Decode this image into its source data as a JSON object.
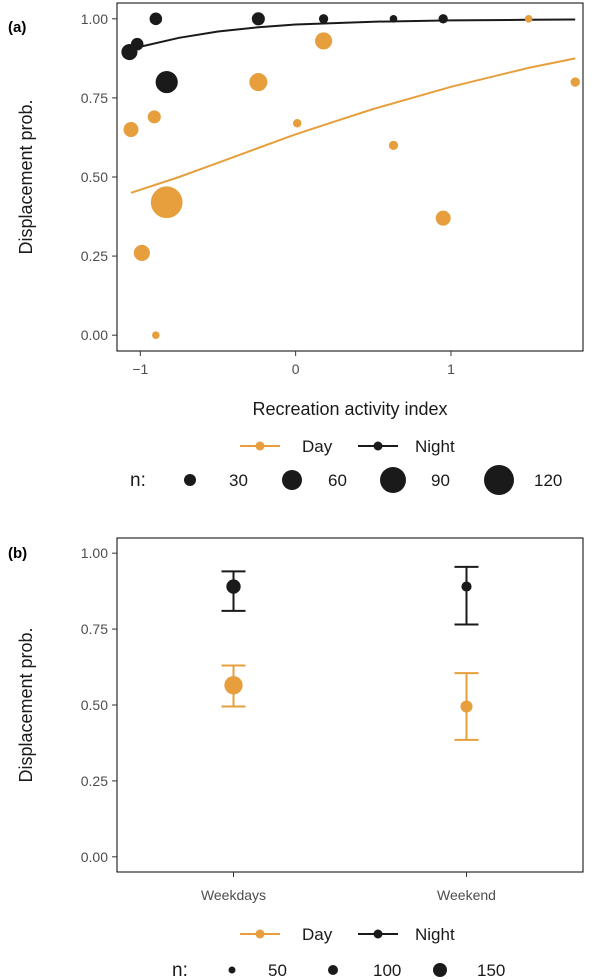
{
  "colors": {
    "day": "#E69F3C",
    "night": "#1a1a1a"
  },
  "chart_data": [
    {
      "panel_label": "(a)",
      "type": "scatter",
      "xlabel": "Recreation activity index",
      "ylabel": "Displacement prob.",
      "xlim": [
        -1.15,
        1.85
      ],
      "ylim": [
        -0.05,
        1.05
      ],
      "x_ticks": [
        -1,
        0,
        1
      ],
      "x_tick_labels": [
        "−1",
        "0",
        "1"
      ],
      "y_ticks": [
        0,
        0.25,
        0.5,
        0.75,
        1.0
      ],
      "y_tick_labels": [
        "0.00",
        "0.25",
        "0.50",
        "0.75",
        "1.00"
      ],
      "grid": false,
      "series": [
        {
          "name": "Day",
          "color": "#E69F3C",
          "points": [
            {
              "x": -1.06,
              "y": 0.65,
              "n": 30
            },
            {
              "x": -0.99,
              "y": 0.26,
              "n": 35
            },
            {
              "x": -0.91,
              "y": 0.69,
              "n": 22
            },
            {
              "x": -0.9,
              "y": 0.0,
              "n": 6
            },
            {
              "x": -0.83,
              "y": 0.42,
              "n": 150
            },
            {
              "x": -0.24,
              "y": 0.8,
              "n": 45
            },
            {
              "x": 0.01,
              "y": 0.67,
              "n": 8
            },
            {
              "x": 0.18,
              "y": 0.93,
              "n": 40
            },
            {
              "x": 0.63,
              "y": 0.6,
              "n": 10
            },
            {
              "x": 0.95,
              "y": 0.37,
              "n": 30
            },
            {
              "x": 1.5,
              "y": 1.0,
              "n": 6
            },
            {
              "x": 1.8,
              "y": 0.8,
              "n": 10
            }
          ],
          "fit": [
            {
              "x": -1.06,
              "y": 0.45
            },
            {
              "x": -0.75,
              "y": 0.5
            },
            {
              "x": -0.5,
              "y": 0.545
            },
            {
              "x": -0.25,
              "y": 0.59
            },
            {
              "x": 0.0,
              "y": 0.635
            },
            {
              "x": 0.25,
              "y": 0.675
            },
            {
              "x": 0.5,
              "y": 0.715
            },
            {
              "x": 0.75,
              "y": 0.75
            },
            {
              "x": 1.0,
              "y": 0.785
            },
            {
              "x": 1.25,
              "y": 0.815
            },
            {
              "x": 1.5,
              "y": 0.845
            },
            {
              "x": 1.8,
              "y": 0.875
            }
          ]
        },
        {
          "name": "Night",
          "color": "#1a1a1a",
          "points": [
            {
              "x": -1.07,
              "y": 0.895,
              "n": 35
            },
            {
              "x": -1.02,
              "y": 0.92,
              "n": 20
            },
            {
              "x": -0.9,
              "y": 1.0,
              "n": 20
            },
            {
              "x": -0.83,
              "y": 0.8,
              "n": 70
            },
            {
              "x": -0.24,
              "y": 1.0,
              "n": 22
            },
            {
              "x": 0.18,
              "y": 1.0,
              "n": 10
            },
            {
              "x": 0.63,
              "y": 1.0,
              "n": 6
            },
            {
              "x": 0.95,
              "y": 1.0,
              "n": 10
            }
          ],
          "fit": [
            {
              "x": -1.06,
              "y": 0.905
            },
            {
              "x": -0.75,
              "y": 0.94
            },
            {
              "x": -0.5,
              "y": 0.96
            },
            {
              "x": -0.25,
              "y": 0.973
            },
            {
              "x": 0.0,
              "y": 0.982
            },
            {
              "x": 0.5,
              "y": 0.991
            },
            {
              "x": 1.0,
              "y": 0.995
            },
            {
              "x": 1.5,
              "y": 0.997
            },
            {
              "x": 1.8,
              "y": 0.998
            }
          ]
        }
      ],
      "legend": {
        "series": [
          "Day",
          "Night"
        ],
        "size_title": "n:",
        "size_values": [
          30,
          60,
          90,
          120
        ]
      }
    },
    {
      "panel_label": "(b)",
      "type": "scatter",
      "categories": [
        "Weekdays",
        "Weekend"
      ],
      "ylabel": "Displacement prob.",
      "ylim": [
        -0.05,
        1.05
      ],
      "y_ticks": [
        0,
        0.25,
        0.5,
        0.75,
        1.0
      ],
      "y_tick_labels": [
        "0.00",
        "0.25",
        "0.50",
        "0.75",
        "1.00"
      ],
      "grid": false,
      "series": [
        {
          "name": "Day",
          "color": "#E69F3C",
          "values": [
            {
              "category": "Weekdays",
              "y": 0.565,
              "lower": 0.495,
              "upper": 0.63,
              "n": 150
            },
            {
              "category": "Weekend",
              "y": 0.495,
              "lower": 0.385,
              "upper": 0.605,
              "n": 50
            }
          ]
        },
        {
          "name": "Night",
          "color": "#1a1a1a",
          "values": [
            {
              "category": "Weekdays",
              "y": 0.89,
              "lower": 0.81,
              "upper": 0.94,
              "n": 80
            },
            {
              "category": "Weekend",
              "y": 0.89,
              "lower": 0.765,
              "upper": 0.955,
              "n": 30
            }
          ]
        }
      ],
      "legend": {
        "series": [
          "Day",
          "Night"
        ],
        "size_title": "n:",
        "size_values": [
          50,
          100,
          150
        ]
      }
    }
  ]
}
